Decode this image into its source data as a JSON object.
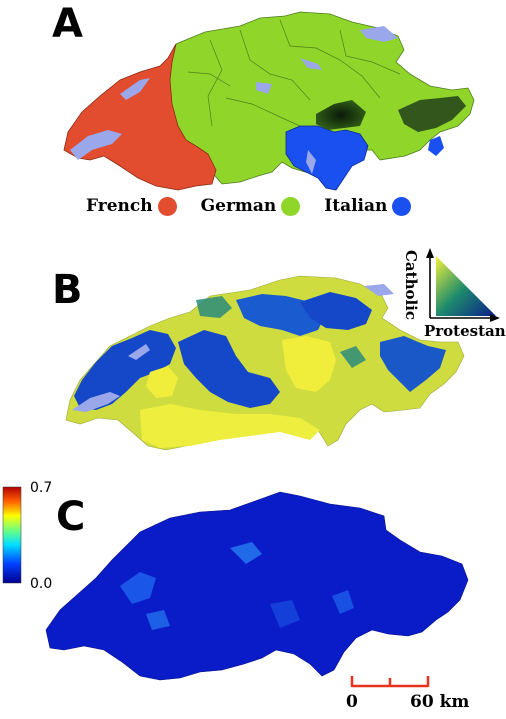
{
  "panels": {
    "a_label": "A",
    "b_label": "B",
    "c_label": "C"
  },
  "language_legend": [
    {
      "label": "French",
      "color": "#e24c2f"
    },
    {
      "label": "German",
      "color": "#8fd52a"
    },
    {
      "label": "Italian",
      "color": "#1a4ff0"
    }
  ],
  "religion_legend": {
    "catholic_label": "Catholic",
    "protestant_label": "Protestant",
    "colors": {
      "catholic": "#f2f23c",
      "protestant": "#0a2fa8",
      "mixed": "#1f7a6e"
    }
  },
  "colorbar": {
    "max_label": "0.7",
    "min_label": "0.0",
    "min": 0.0,
    "max": 0.7
  },
  "scale_bar": {
    "start_label": "0",
    "end_label": "60 km",
    "color": "#e8321e"
  }
}
